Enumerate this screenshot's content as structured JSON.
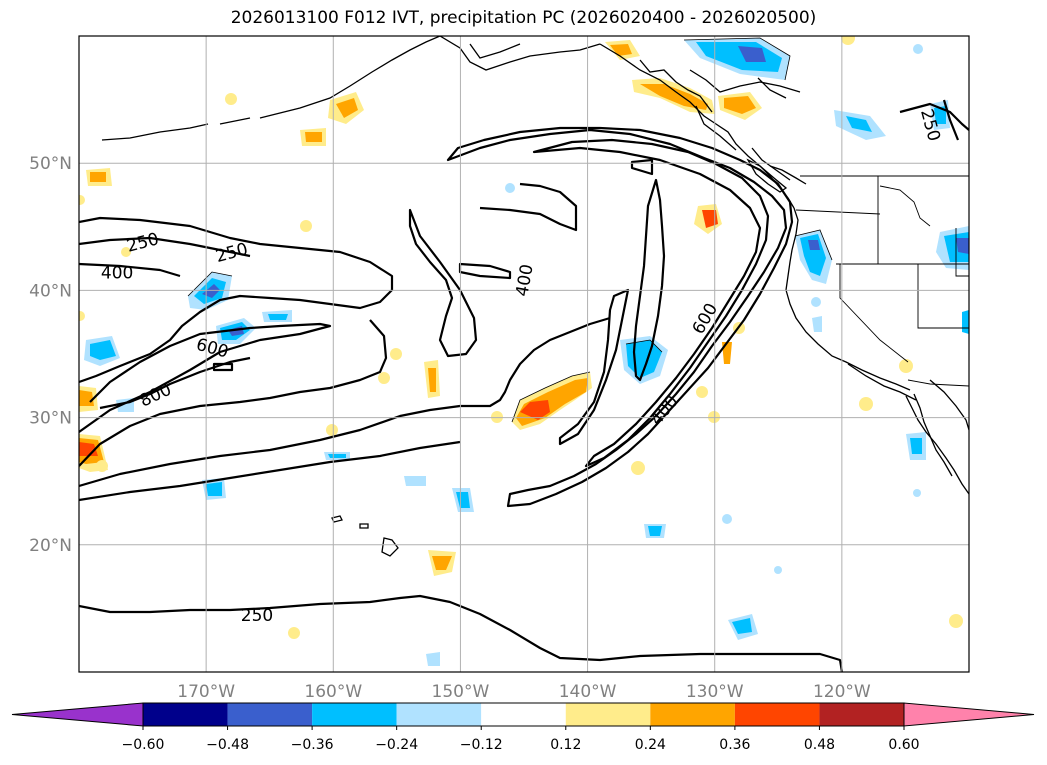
{
  "title": "2026013100 F012 IVT, precipitation PC (2026020400 - 2026020500)",
  "map": {
    "lon_range": [
      -180,
      -110
    ],
    "lat_range": [
      10,
      60
    ],
    "lon_ticks": [
      {
        "value": -170,
        "label": "170°W"
      },
      {
        "value": -160,
        "label": "160°W"
      },
      {
        "value": -150,
        "label": "150°W"
      },
      {
        "value": -140,
        "label": "140°W"
      },
      {
        "value": -130,
        "label": "130°W"
      },
      {
        "value": -120,
        "label": "120°W"
      }
    ],
    "lat_ticks": [
      {
        "value": 20,
        "label": "20°N"
      },
      {
        "value": 30,
        "label": "30°N"
      },
      {
        "value": 40,
        "label": "40°N"
      },
      {
        "value": 50,
        "label": "50°N"
      }
    ],
    "grid": true,
    "contour_labels": [
      {
        "text": "250",
        "lon": -175,
        "lat": 43.8,
        "angle": -15
      },
      {
        "text": "400",
        "lon": -177,
        "lat": 41.4,
        "angle": 0
      },
      {
        "text": "250",
        "lon": -168,
        "lat": 43.0,
        "angle": -15
      },
      {
        "text": "600",
        "lon": -169.5,
        "lat": 35.5,
        "angle": 15
      },
      {
        "text": "800",
        "lon": -174,
        "lat": 31.8,
        "angle": -25
      },
      {
        "text": "400",
        "lon": -145,
        "lat": 40.8,
        "angle": -80
      },
      {
        "text": "600",
        "lon": -130.8,
        "lat": 37.8,
        "angle": -60
      },
      {
        "text": "400",
        "lon": -134,
        "lat": 30.6,
        "angle": -50
      },
      {
        "text": "250",
        "lon": -113,
        "lat": 53.0,
        "angle": 75
      },
      {
        "text": "250",
        "lon": -166,
        "lat": 14.5,
        "angle": 0
      }
    ]
  },
  "colorbar": {
    "colors": [
      "#9932cc",
      "#00008b",
      "#3a5fcd",
      "#00bfff",
      "#b0e2ff",
      "#ffffff",
      "#ffec8b",
      "#ffa500",
      "#ff4500",
      "#b22222",
      "#ff82ab"
    ],
    "ticks": [
      "−0.60",
      "−0.48",
      "−0.36",
      "−0.24",
      "−0.12",
      "0.12",
      "0.24",
      "0.36",
      "0.48",
      "0.60"
    ]
  },
  "precip_colors": {
    "pos_weak": "#ffec8b",
    "pos_mod": "#ffa500",
    "pos_strong": "#ff4500",
    "neg_weak": "#b0e2ff",
    "neg_mod": "#00bfff",
    "neg_strong": "#3a5fcd"
  }
}
